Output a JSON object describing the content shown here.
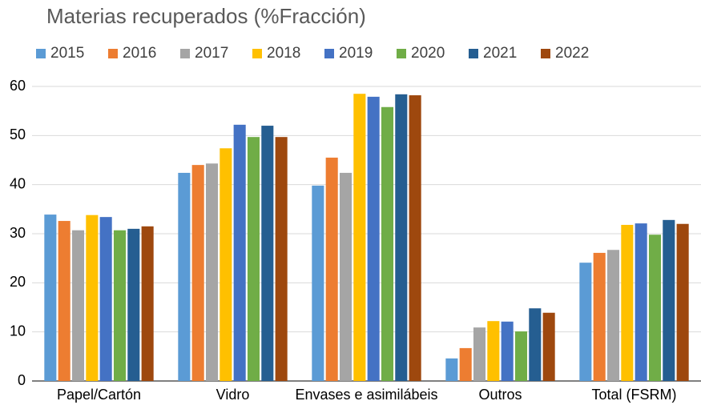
{
  "chart_data": {
    "type": "bar",
    "title": "Materias recuperados (%Fracción)",
    "categories": [
      "Papel/Cartón",
      "Vidro",
      "Envases e asimilábeis",
      "Outros",
      "Total (FSRM)"
    ],
    "series": [
      {
        "name": "2015",
        "color": "#5b9bd5",
        "values": [
          33.9,
          42.4,
          39.8,
          4.6,
          24.1
        ]
      },
      {
        "name": "2016",
        "color": "#ed7d31",
        "values": [
          32.6,
          44.0,
          45.5,
          6.7,
          26.1
        ]
      },
      {
        "name": "2017",
        "color": "#a5a5a5",
        "values": [
          30.7,
          44.3,
          42.4,
          10.9,
          26.7
        ]
      },
      {
        "name": "2018",
        "color": "#ffc000",
        "values": [
          33.8,
          47.4,
          58.5,
          12.2,
          31.8
        ]
      },
      {
        "name": "2019",
        "color": "#4472c4",
        "values": [
          33.4,
          52.2,
          57.9,
          12.1,
          32.1
        ]
      },
      {
        "name": "2020",
        "color": "#70ad47",
        "values": [
          30.7,
          49.7,
          55.8,
          10.1,
          29.8
        ]
      },
      {
        "name": "2021",
        "color": "#255e91",
        "values": [
          31.0,
          52.0,
          58.4,
          14.8,
          32.8
        ]
      },
      {
        "name": "2022",
        "color": "#9e480e",
        "values": [
          31.5,
          49.7,
          58.2,
          13.9,
          32.0
        ]
      }
    ],
    "ylim": [
      0,
      60
    ],
    "yticks": [
      0,
      10,
      20,
      30,
      40,
      50,
      60
    ],
    "grid": true,
    "legend": "top"
  }
}
